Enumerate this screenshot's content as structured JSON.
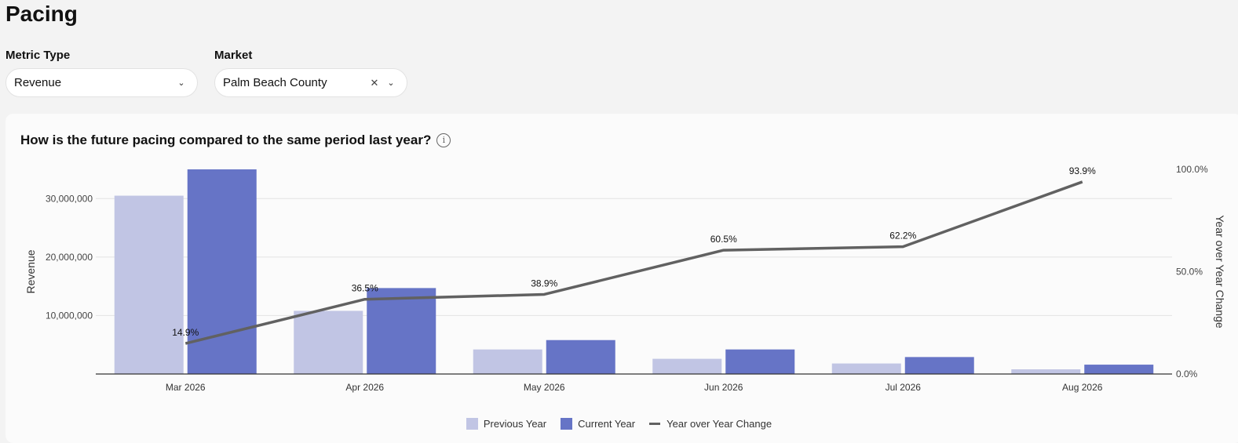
{
  "page": {
    "title": "Pacing"
  },
  "filters": {
    "metric": {
      "label": "Metric Type",
      "value": "Revenue"
    },
    "market": {
      "label": "Market",
      "value": "Palm Beach County"
    }
  },
  "chart_card": {
    "title": "How is the future pacing compared to the same period last year?"
  },
  "colors": {
    "previous_year": "#c1c5e4",
    "current_year": "#6674c6",
    "yoy_line": "#616161"
  },
  "chart_data": {
    "type": "bar",
    "categories": [
      "Mar 2026",
      "Apr 2026",
      "May 2026",
      "Jun 2026",
      "Jul 2026",
      "Aug 2026"
    ],
    "series": [
      {
        "name": "Previous Year",
        "type": "bar",
        "axis": "left",
        "values": [
          30500000,
          10800000,
          4200000,
          2600000,
          1800000,
          800000
        ]
      },
      {
        "name": "Current Year",
        "type": "bar",
        "axis": "left",
        "values": [
          35000000,
          14700000,
          5800000,
          4200000,
          2900000,
          1600000
        ]
      },
      {
        "name": "Year over Year Change",
        "type": "line",
        "axis": "right",
        "values": [
          14.9,
          36.5,
          38.9,
          60.5,
          62.2,
          93.9
        ],
        "labels": [
          "14.9%",
          "36.5%",
          "38.9%",
          "60.5%",
          "62.2%",
          "93.9%"
        ]
      }
    ],
    "ylabel": "Revenue",
    "y2label": "Year over Year Change",
    "ylim": [
      0,
      35000000
    ],
    "y2lim": [
      0,
      100
    ],
    "yticks": [
      10000000,
      20000000,
      30000000
    ],
    "ytick_labels": [
      "10,000,000",
      "20,000,000",
      "30,000,000"
    ],
    "y2ticks": [
      0,
      50,
      100
    ],
    "y2tick_labels": [
      "0.0%",
      "50.0%",
      "100.0%"
    ],
    "grid": true,
    "legend": "bottom"
  }
}
